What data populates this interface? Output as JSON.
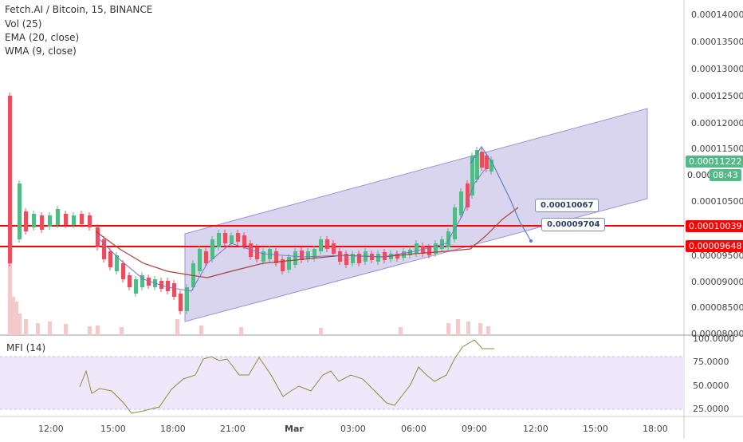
{
  "legend": {
    "title": "Fetch.AI / Bitcoin, 15, BINANCE",
    "vol": "Vol (25)",
    "ema": "EMA (20, close)",
    "wma": "WMA (9, close)",
    "mfi": "MFI (14)"
  },
  "price_axis": [
    "0.00014000",
    "0.00013500",
    "0.00013000",
    "0.00012500",
    "0.00012000",
    "0.00011500",
    "0.00010500",
    "0.00009500",
    "0.00009000",
    "0.00008500",
    "0.00008000"
  ],
  "mfi_axis": [
    "100.0000",
    "75.0000",
    "50.0000",
    "25.0000"
  ],
  "time_axis": [
    "12:00",
    "15:00",
    "18:00",
    "21:00",
    "Mar",
    "03:00",
    "06:00",
    "09:00",
    "12:00",
    "15:00",
    "18:00"
  ],
  "price_tags": {
    "last": "0.00011222",
    "countdown": "08:43",
    "partial": "0.000",
    "level_upper": "0.00010039",
    "level_lower": "0.00009648"
  },
  "callouts": {
    "upper": "0.00010067",
    "lower": "0.00009704"
  },
  "colors": {
    "up": "#53b987",
    "down": "#eb4d5c",
    "channel": "#b9b3e0",
    "level": "#ff0000",
    "ema": "#a8443a",
    "wma": "#7c6fcf",
    "mfi_band": "#efe8fb",
    "last_tag": "#53b987"
  }
}
